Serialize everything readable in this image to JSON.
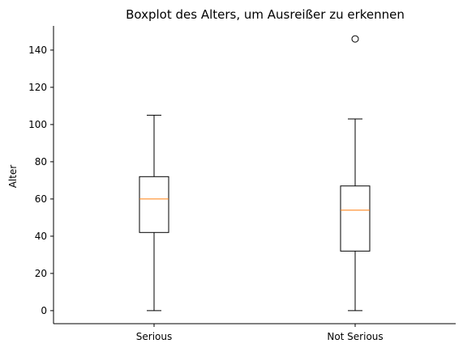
{
  "chart_data": {
    "type": "boxplot",
    "title": "Boxplot des Alters, um Ausreißer zu erkennen",
    "xlabel": "",
    "ylabel": "Alter",
    "ylim": [
      -7,
      153
    ],
    "yticks": [
      0,
      20,
      40,
      60,
      80,
      100,
      120,
      140
    ],
    "categories": [
      "Serious",
      "Not Serious"
    ],
    "boxes": [
      {
        "category": "Serious",
        "whisker_low": 0,
        "q1": 42,
        "median": 60,
        "q3": 72,
        "whisker_high": 105,
        "outliers": []
      },
      {
        "category": "Not Serious",
        "whisker_low": 0,
        "q1": 32,
        "median": 54,
        "q3": 67,
        "whisker_high": 103,
        "outliers": [
          146
        ]
      }
    ],
    "grid": false,
    "colors": {
      "box": "#000000",
      "median": "#ff7f0e",
      "outlier": "#000000"
    }
  }
}
